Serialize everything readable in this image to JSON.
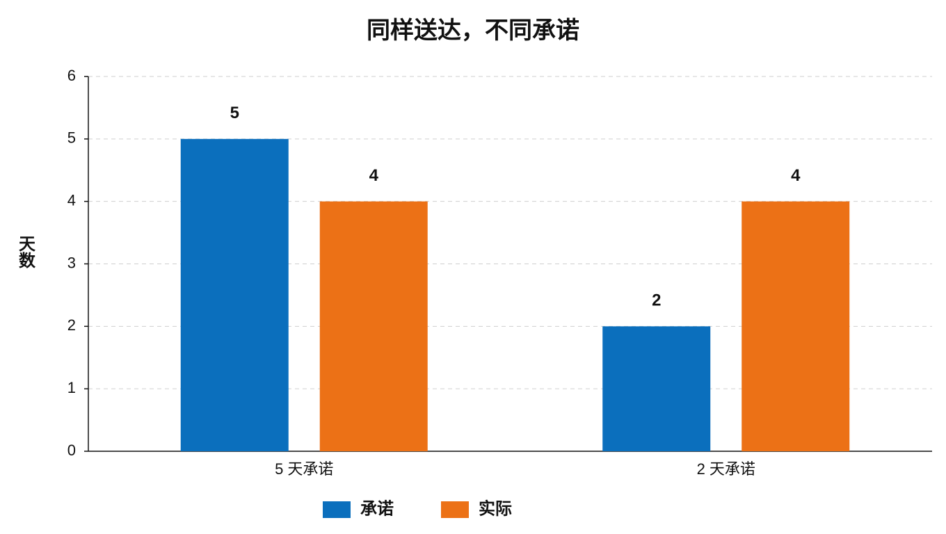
{
  "chart_data": {
    "type": "bar",
    "title": "同样送达，不同承诺",
    "y_label": "天数",
    "categories": [
      "5 天承诺",
      "2 天承诺"
    ],
    "series": [
      {
        "name": "承诺",
        "color": "#0b6fbd",
        "values": [
          5,
          2
        ]
      },
      {
        "name": "实际",
        "color": "#ec7116",
        "values": [
          4,
          4
        ]
      }
    ],
    "ylim": [
      0,
      6
    ],
    "yticks": [
      0,
      1,
      2,
      3,
      4,
      5,
      6
    ],
    "grid": true,
    "legend": "bottom"
  }
}
